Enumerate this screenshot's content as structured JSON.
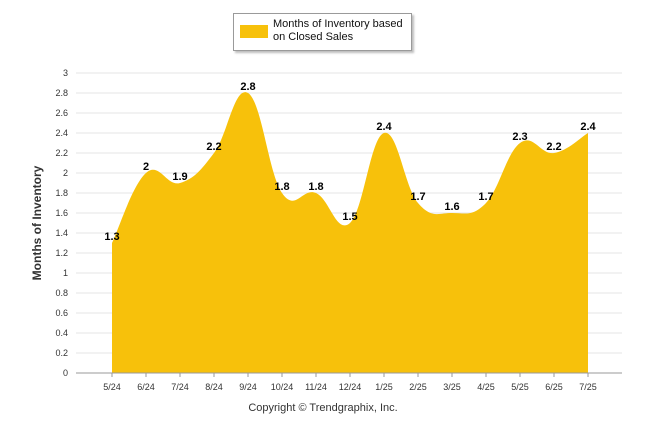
{
  "colors": {
    "fill": "#F7C10B",
    "grid": "#e6e6e6"
  },
  "legend": {
    "placement": "top-center"
  },
  "credit": "Copyright © Trendgraphix, Inc.",
  "chart_data": {
    "type": "area",
    "categories": [
      "5/24",
      "6/24",
      "7/24",
      "8/24",
      "9/24",
      "10/24",
      "11/24",
      "12/24",
      "1/25",
      "2/25",
      "3/25",
      "4/25",
      "5/25",
      "6/25",
      "7/25"
    ],
    "series": [
      {
        "name": "Months of Inventory based on Closed Sales",
        "values": [
          1.3,
          2,
          1.9,
          2.2,
          2.8,
          1.8,
          1.8,
          1.5,
          2.4,
          1.7,
          1.6,
          1.7,
          2.3,
          2.2,
          2.4
        ],
        "labels": [
          "1.3",
          "2",
          "1.9",
          "2.2",
          "2.8",
          "1.8",
          "1.8",
          "1.5",
          "2.4",
          "1.7",
          "1.6",
          "1.7",
          "2.3",
          "2.2",
          "2.4"
        ]
      }
    ],
    "ylabel": "Months of Inventory",
    "ylim": [
      0,
      3
    ],
    "yticks": [
      0,
      0.2,
      0.4,
      0.6,
      0.8,
      1,
      1.2,
      1.4,
      1.6,
      1.8,
      2,
      2.2,
      2.4,
      2.6,
      2.8,
      3
    ],
    "ytick_labels": [
      "0",
      "0.2",
      "0.4",
      "0.6",
      "0.8",
      "1",
      "1.2",
      "1.4",
      "1.6",
      "1.8",
      "2",
      "2.2",
      "2.4",
      "2.6",
      "2.8",
      "3"
    ],
    "grid": true
  }
}
